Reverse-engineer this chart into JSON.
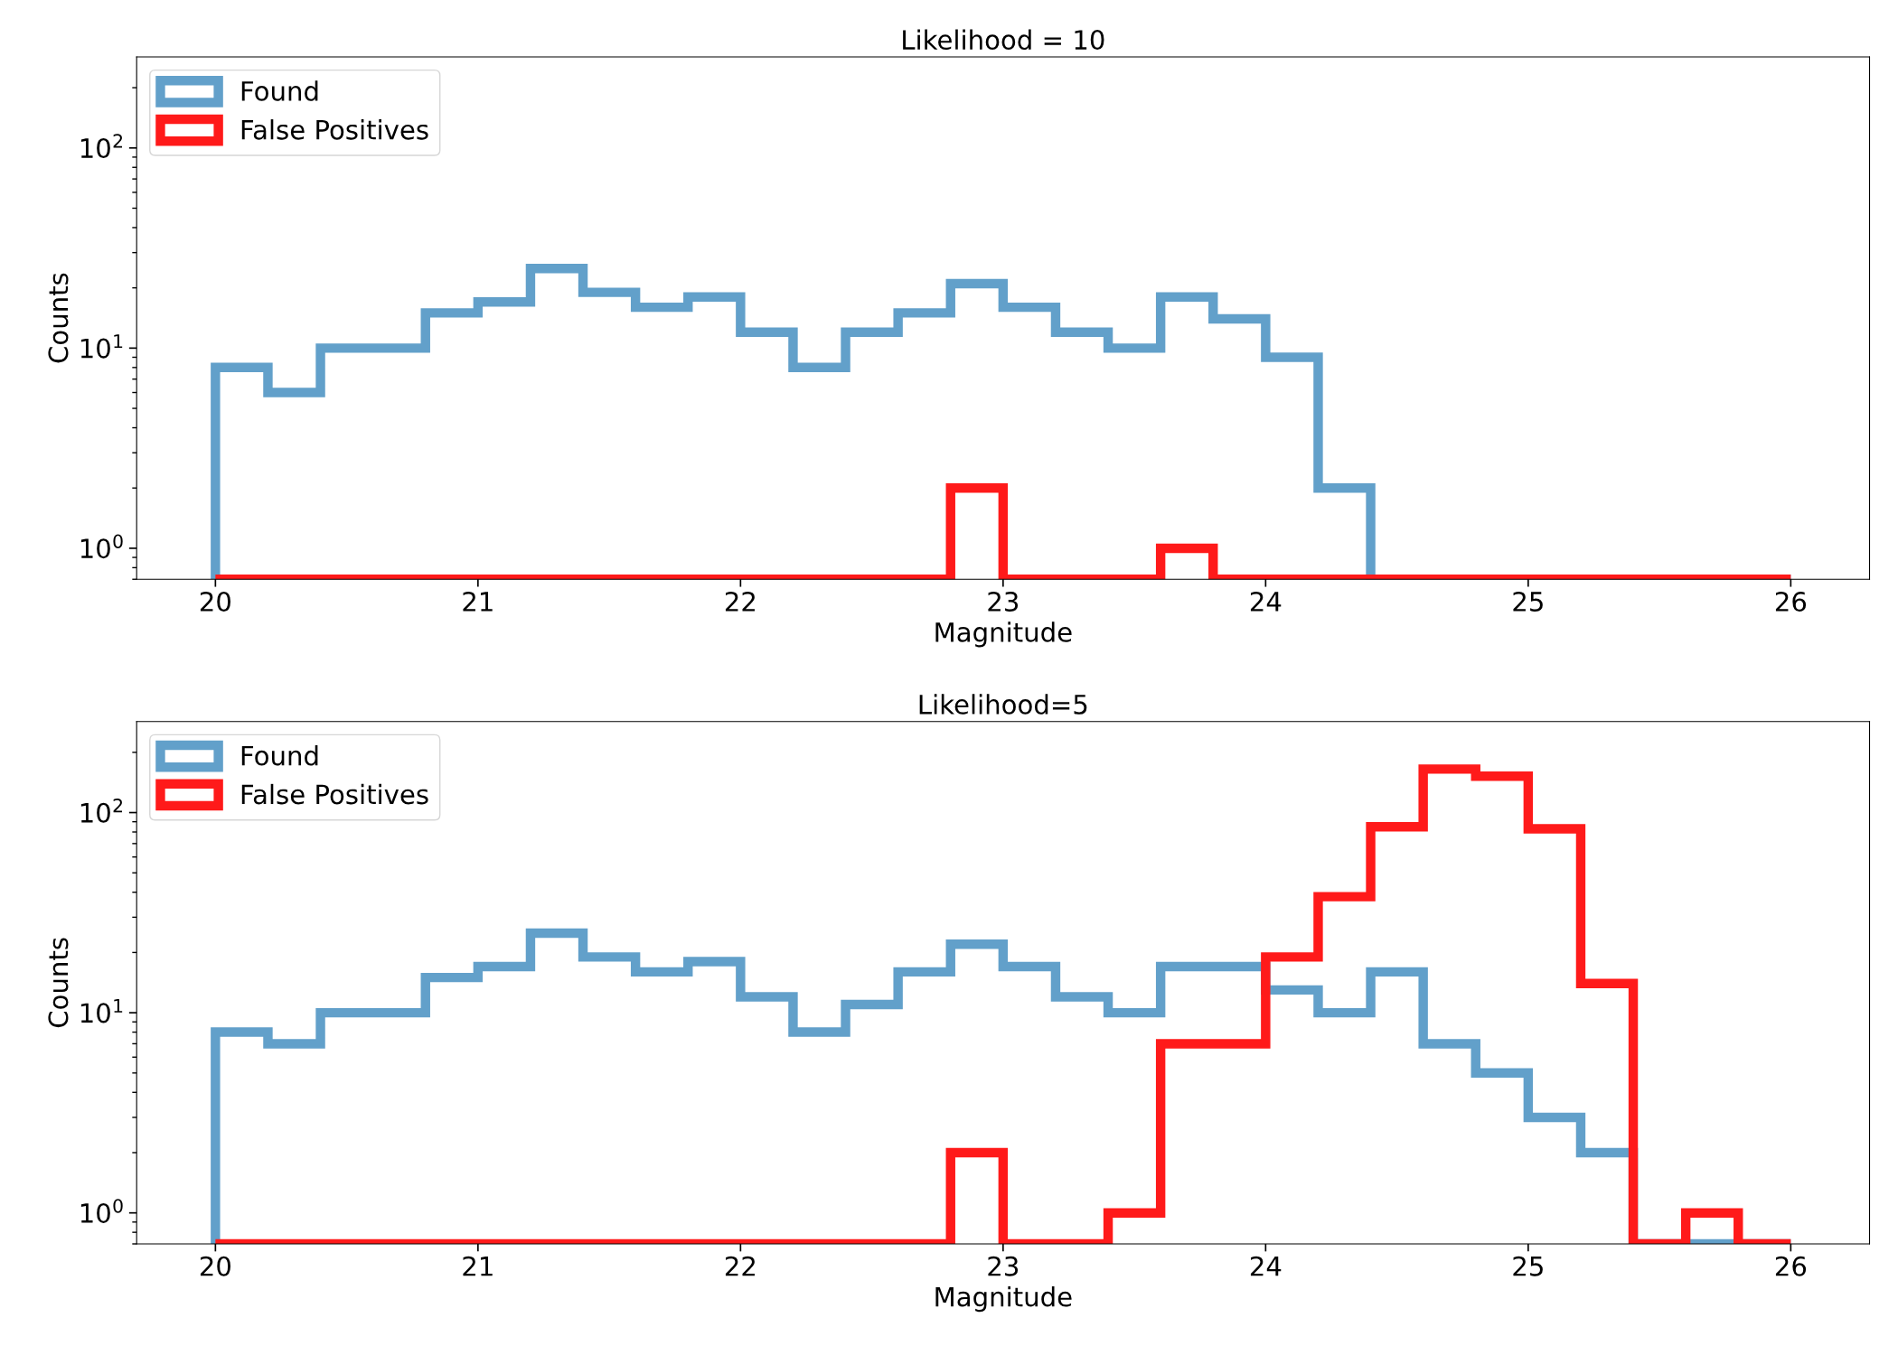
{
  "chart_data": [
    {
      "type": "histogram",
      "title": "Likelihood = 10",
      "xlabel": "Magnitude",
      "ylabel": "Counts",
      "bins": [
        20.0,
        20.2,
        20.4,
        20.6,
        20.8,
        21.0,
        21.2,
        21.4,
        21.6,
        21.8,
        22.0,
        22.2,
        22.4,
        22.6,
        22.8,
        23.0,
        23.2,
        23.4,
        23.6,
        23.8,
        24.0,
        24.2,
        24.4,
        24.6,
        24.8,
        25.0,
        25.2,
        25.4,
        25.6,
        25.8,
        26.0
      ],
      "series": [
        {
          "name": "Found",
          "color": "#62a0ca",
          "values": [
            8,
            6,
            10,
            10,
            15,
            17,
            25,
            19,
            16,
            18,
            12,
            8,
            12,
            15,
            21,
            16,
            12,
            10,
            18,
            14,
            9,
            2,
            null,
            null,
            null,
            null,
            null,
            null,
            null,
            null
          ]
        },
        {
          "name": "False Positives",
          "color": "#ff1a1a",
          "values": [
            null,
            null,
            null,
            null,
            null,
            null,
            null,
            null,
            null,
            null,
            null,
            null,
            null,
            null,
            2,
            null,
            null,
            null,
            1,
            null,
            null,
            null,
            null,
            null,
            null,
            null,
            null,
            null,
            null,
            null
          ]
        }
      ],
      "log": "y",
      "xlim": [
        19.7,
        26.3
      ],
      "xticks": [
        20,
        21,
        22,
        23,
        24,
        25,
        26
      ],
      "ylim": [
        0.7,
        285
      ],
      "yticks": [
        {
          "value": 1,
          "label": "10$^{0}$"
        },
        {
          "value": 10,
          "label": "10$^{1}$"
        },
        {
          "value": 100,
          "label": "10$^{2}$"
        }
      ],
      "legend": "top left",
      "grid": false
    },
    {
      "type": "histogram",
      "title": "Likelihood=5",
      "xlabel": "Magnitude",
      "ylabel": "Counts",
      "bins": [
        20.0,
        20.2,
        20.4,
        20.6,
        20.8,
        21.0,
        21.2,
        21.4,
        21.6,
        21.8,
        22.0,
        22.2,
        22.4,
        22.6,
        22.8,
        23.0,
        23.2,
        23.4,
        23.6,
        23.8,
        24.0,
        24.2,
        24.4,
        24.6,
        24.8,
        25.0,
        25.2,
        25.4,
        25.6,
        25.8,
        26.0
      ],
      "series": [
        {
          "name": "Found",
          "color": "#62a0ca",
          "values": [
            8,
            7,
            10,
            10,
            15,
            17,
            25,
            19,
            16,
            18,
            12,
            8,
            11,
            16,
            22,
            17,
            12,
            10,
            17,
            17,
            13,
            10,
            16,
            7,
            5,
            3,
            2,
            null,
            null,
            null
          ]
        },
        {
          "name": "False Positives",
          "color": "#ff1a1a",
          "values": [
            null,
            null,
            null,
            null,
            null,
            null,
            null,
            null,
            null,
            null,
            null,
            null,
            null,
            null,
            2,
            null,
            null,
            1,
            7,
            7,
            19,
            38,
            85,
            165,
            152,
            83,
            14,
            null,
            1,
            null
          ]
        }
      ],
      "log": "y",
      "xlim": [
        19.7,
        26.3
      ],
      "xticks": [
        20,
        21,
        22,
        23,
        24,
        25,
        26
      ],
      "ylim": [
        0.7,
        285
      ],
      "yticks": [
        {
          "value": 1,
          "label": "10$^{0}$"
        },
        {
          "value": 10,
          "label": "10$^{1}$"
        },
        {
          "value": 100,
          "label": "10$^{2}$"
        }
      ],
      "legend": "top left",
      "grid": false
    }
  ]
}
